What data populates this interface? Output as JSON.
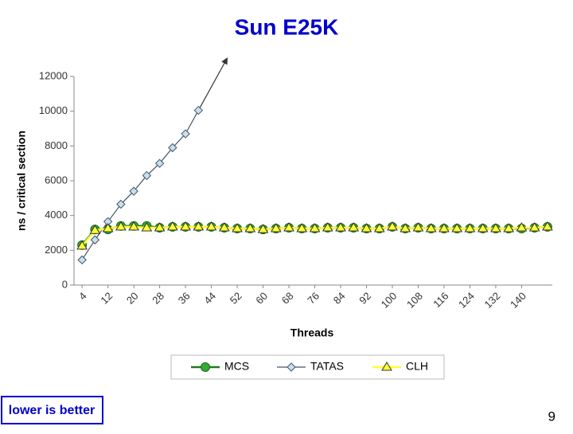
{
  "chart_data": {
    "type": "line",
    "title": "Sun E25K",
    "x_label": "Threads",
    "y_label": "ns / critical section",
    "x": [
      4,
      8,
      12,
      16,
      20,
      24,
      28,
      32,
      36,
      40,
      44,
      48,
      52,
      56,
      60,
      64,
      68,
      72,
      76,
      80,
      84,
      88,
      92,
      96,
      100,
      104,
      108,
      112,
      116,
      120,
      124,
      128,
      132,
      136,
      140,
      144,
      148
    ],
    "series": [
      {
        "name": "MCS",
        "color": "#33aa33",
        "values": [
          2300,
          3200,
          3200,
          3400,
          3400,
          3400,
          3300,
          3350,
          3350,
          3350,
          3350,
          3300,
          3250,
          3250,
          3200,
          3250,
          3300,
          3250,
          3250,
          3300,
          3300,
          3300,
          3250,
          3250,
          3350,
          3250,
          3300,
          3250,
          3250,
          3250,
          3250,
          3250,
          3250,
          3250,
          3250,
          3300,
          3350
        ]
      },
      {
        "name": "TATAS",
        "color": "#c8dfee",
        "values": [
          1450,
          2600,
          3650,
          4650,
          5400,
          6300,
          7000,
          7900,
          8700,
          10050,
          null,
          null,
          null,
          null,
          null,
          null,
          null,
          null,
          null,
          null,
          null,
          null,
          null,
          null,
          null,
          null,
          null,
          null,
          null,
          null,
          null,
          null,
          null,
          null,
          null,
          null,
          null
        ]
      },
      {
        "name": "CLH",
        "color": "#ffff33",
        "values": [
          2250,
          3150,
          3250,
          3350,
          3350,
          3300,
          3300,
          3350,
          3350,
          3350,
          3350,
          3300,
          3250,
          3250,
          3200,
          3250,
          3300,
          3250,
          3250,
          3300,
          3300,
          3300,
          3250,
          3250,
          3350,
          3250,
          3300,
          3250,
          3250,
          3250,
          3250,
          3250,
          3250,
          3250,
          3300,
          3300,
          3350
        ]
      }
    ],
    "xlim": [
      1.5,
      149.5
    ],
    "xticks": [
      4,
      12,
      20,
      28,
      36,
      44,
      52,
      60,
      68,
      76,
      84,
      92,
      100,
      108,
      116,
      124,
      132,
      140
    ],
    "ylim": [
      0,
      12000
    ],
    "yticks": [
      0,
      2000,
      4000,
      6000,
      8000,
      10000,
      12000
    ],
    "grid": false
  },
  "footer": {
    "note": "lower is better",
    "page": "9"
  }
}
